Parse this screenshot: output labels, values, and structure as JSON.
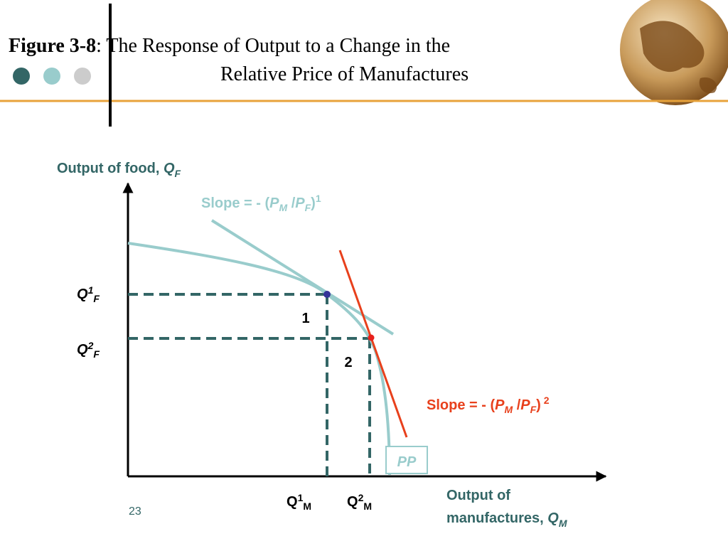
{
  "header": {
    "figure": "Figure 3-8",
    "title_line1": ": The Response of Output to a Change in the",
    "title_line2": "Relative Price of Manufactures"
  },
  "diagram": {
    "y_axis_label": {
      "text": "Output of food, ",
      "symbol": "Q",
      "subscript": "F"
    },
    "x_axis_label": {
      "line1": "Output of",
      "line2": "manufactures, ",
      "symbol": "Q",
      "subscript": "M"
    },
    "slope_1": {
      "text": "Slope = - (",
      "p1": "P",
      "s1": "M",
      "slash": " /",
      "p2": "P",
      "s2": "F",
      "close": ")",
      "sup": "1"
    },
    "slope_2": {
      "text": "Slope = - (",
      "p1": "P",
      "s1": "M",
      "slash": " /",
      "p2": "P",
      "s2": "F",
      "close": ")",
      "sup": " 2"
    },
    "q1f": {
      "symbol": "Q",
      "sup": "1",
      "sub": "F"
    },
    "q2f": {
      "symbol": "Q",
      "sup": "2",
      "sub": "F"
    },
    "q1m": {
      "symbol": "Q",
      "sup": "1",
      "sub": "M"
    },
    "q2m": {
      "symbol": "Q",
      "sup": "2",
      "sub": "M"
    },
    "point_labels": [
      "1",
      "2"
    ],
    "curve_label": "PP"
  },
  "footer": {
    "page_number": "23"
  }
}
